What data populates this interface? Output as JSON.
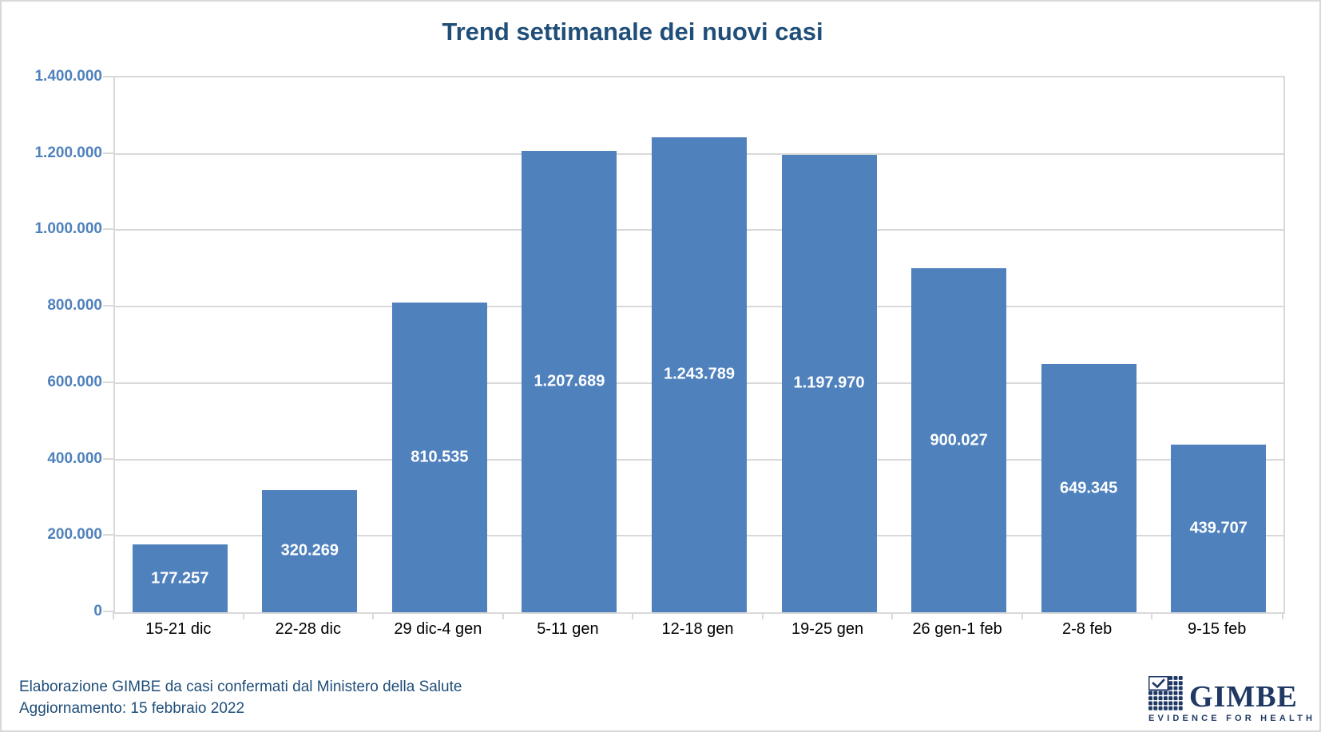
{
  "chart_data": {
    "type": "bar",
    "title": "Trend settimanale dei nuovi casi",
    "categories": [
      "15-21 dic",
      "22-28 dic",
      "29 dic-4 gen",
      "5-11 gen",
      "12-18 gen",
      "19-25 gen",
      "26 gen-1 feb",
      "2-8 feb",
      "9-15 feb"
    ],
    "values": [
      177257,
      320269,
      810535,
      1207689,
      1243789,
      1197970,
      900027,
      649345,
      439707
    ],
    "value_labels": [
      "177.257",
      "320.269",
      "810.535",
      "1.207.689",
      "1.243.789",
      "1.197.970",
      "900.027",
      "649.345",
      "439.707"
    ],
    "xlabel": "",
    "ylabel": "",
    "ylim": [
      0,
      1400000
    ],
    "ytick_interval": 200000,
    "ytick_labels": [
      "0",
      "200.000",
      "400.000",
      "600.000",
      "800.000",
      "1.000.000",
      "1.200.000",
      "1.400.000"
    ],
    "grid": true,
    "legend": false,
    "bar_color": "#4f81bd",
    "value_label_color": "#ffffff"
  },
  "colors": {
    "bar": "#4f81bd",
    "grid": "#d9d9d9",
    "title": "#1f4e79",
    "ytick": "#4f81bd",
    "xtick": "#000000",
    "footer": "#1f4e79",
    "logo": "#1f3864"
  },
  "footer": {
    "line1": "Elaborazione GIMBE da casi confermati dal Ministero della Salute",
    "line2": "Aggiornamento: 15 febbraio 2022"
  },
  "logo": {
    "name": "GIMBE",
    "tagline": "EVIDENCE FOR HEALTH",
    "icon": "gimbe-check-grid-icon"
  }
}
